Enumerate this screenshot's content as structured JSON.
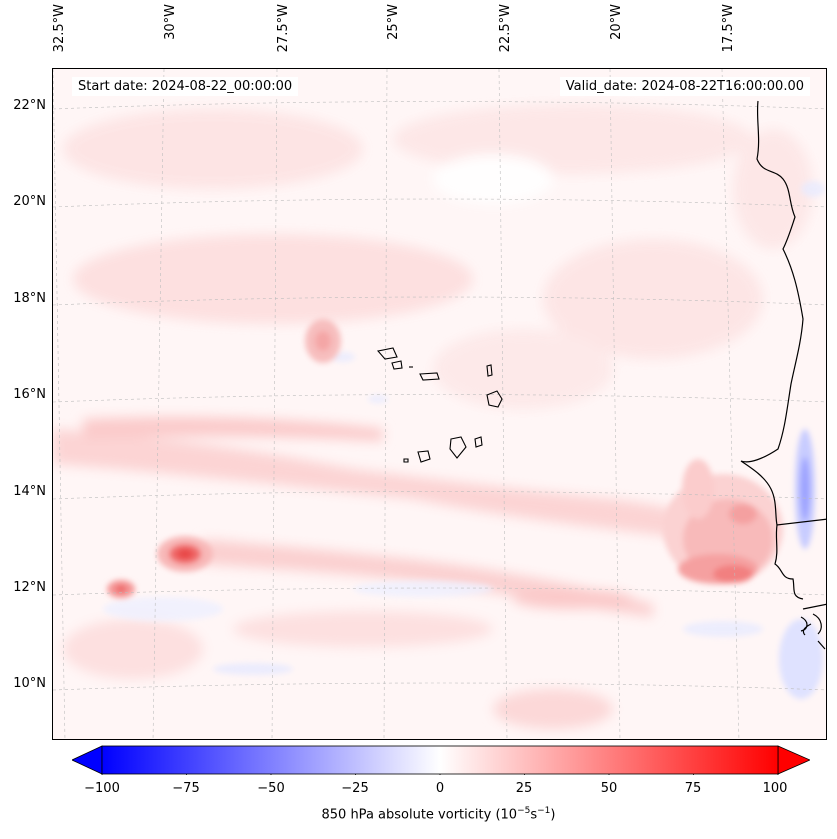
{
  "map": {
    "info": {
      "start_date": "Start date: 2024-08-22_00:00:00",
      "valid_date": "Valid_date: 2024-08-22T16:00:00.00"
    },
    "lat_labels": [
      "22°N",
      "20°N",
      "18°N",
      "16°N",
      "14°N",
      "12°N",
      "10°N"
    ],
    "lon_labels": [
      "32.5°W",
      "30°W",
      "27.5°W",
      "25°W",
      "22.5°W",
      "20°W",
      "17.5°W"
    ],
    "variable": "850 hPa absolute vorticity",
    "units": "10⁻⁵ s⁻¹"
  },
  "colorbar": {
    "ticks": [
      "−100",
      "−75",
      "−50",
      "−25",
      "0",
      "25",
      "50",
      "75",
      "100"
    ],
    "label_text": "850 hPa absolute vorticity (10",
    "label_exp1": "−5",
    "label_mid": "s",
    "label_exp2": "−1",
    "label_end": ")",
    "range": [
      -100,
      100
    ],
    "colors": {
      "min": "#0000ff",
      "mid": "#ffffff",
      "max": "#ff0000"
    }
  }
}
